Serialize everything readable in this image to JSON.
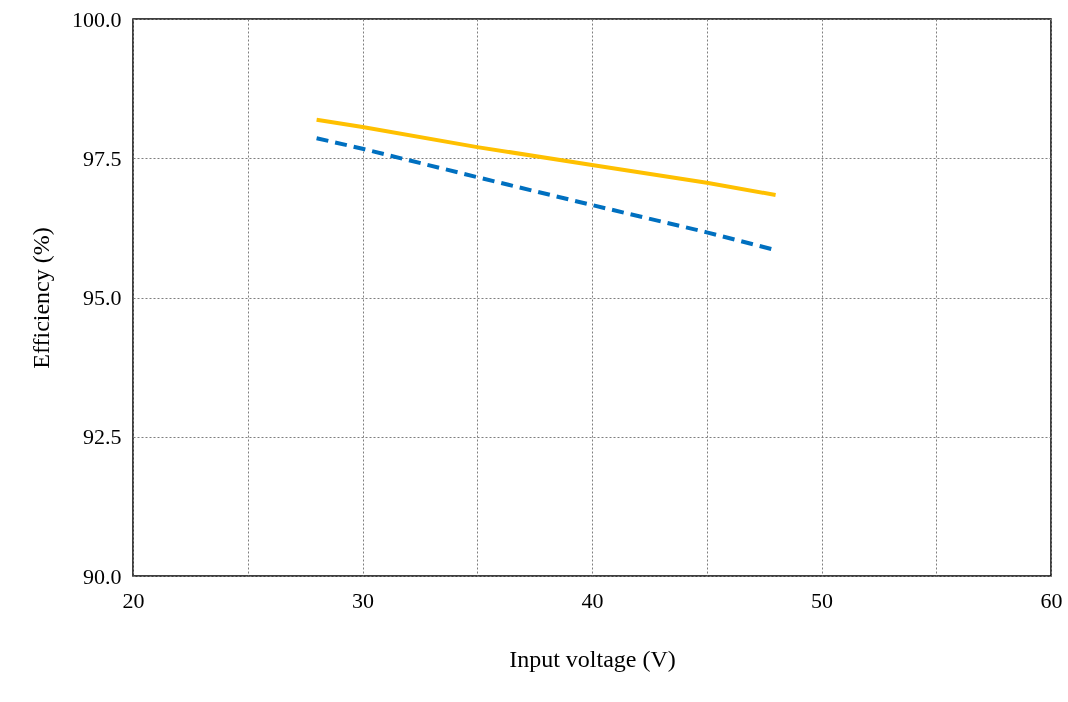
{
  "chart_data": {
    "type": "line",
    "xlabel": "Input voltage (V)",
    "ylabel": "Efficiency (%)",
    "xlim": [
      20,
      60
    ],
    "xticks": [
      20,
      {
        "value": 25,
        "label": null
      },
      30,
      {
        "value": 35,
        "label": null
      },
      40,
      {
        "value": 45,
        "label": null
      },
      50,
      {
        "value": 55,
        "label": null
      },
      60
    ],
    "ylim": [
      90,
      100
    ],
    "yticks": [
      {
        "value": 90,
        "label": "90.0"
      },
      {
        "value": 92.5,
        "label": "92.5"
      },
      {
        "value": 95,
        "label": "95.0"
      },
      {
        "value": 97.5,
        "label": "97.5"
      },
      {
        "value": 100,
        "label": "100.0"
      }
    ],
    "grid": true,
    "marker": "none",
    "series": [
      {
        "color": "#ffc000",
        "line_style": "solid",
        "x": [
          28,
          30,
          35,
          40,
          45,
          48
        ],
        "values": [
          98.19,
          98.06,
          97.7,
          97.38,
          97.06,
          96.84
        ]
      },
      {
        "color": "#0070c0",
        "line_style": "dashed",
        "x": [
          28,
          30,
          35,
          40,
          45,
          48
        ],
        "values": [
          97.86,
          97.67,
          97.16,
          96.66,
          96.17,
          95.85
        ]
      }
    ]
  }
}
